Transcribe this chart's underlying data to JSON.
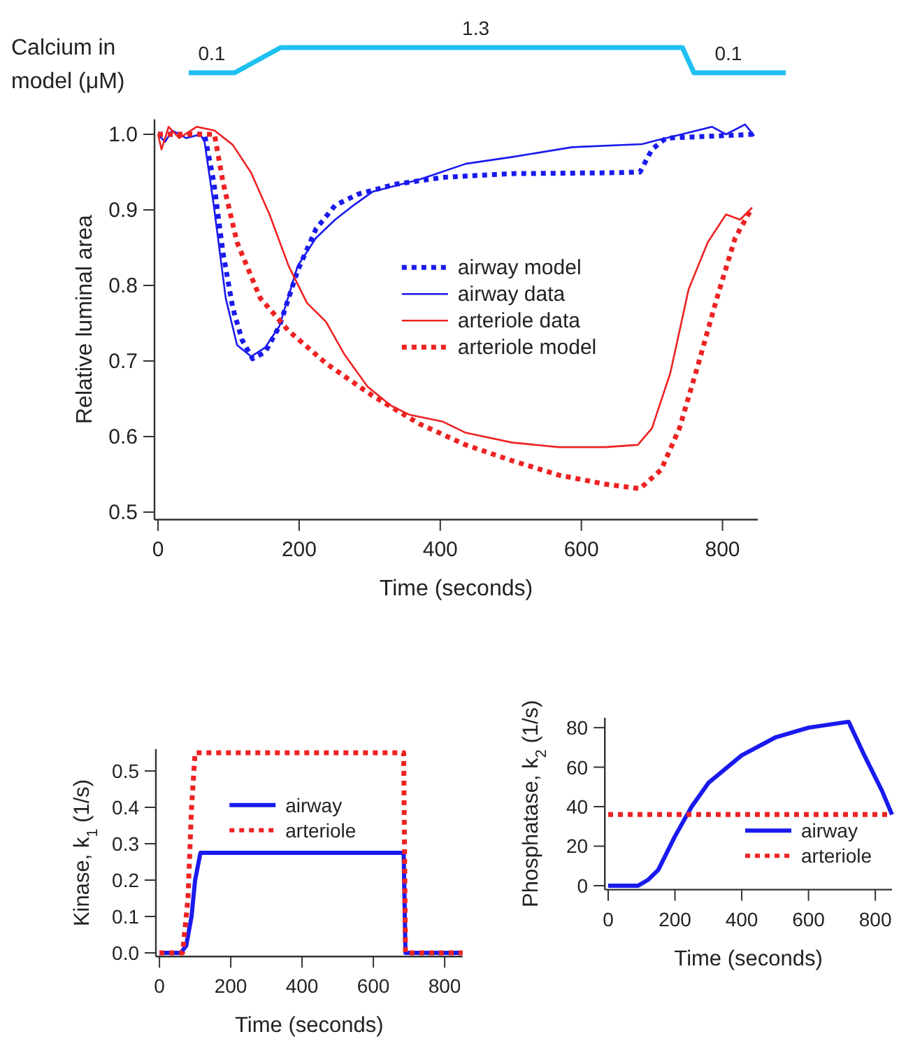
{
  "chart_data": [
    {
      "type": "line",
      "ylabel": "Calcium in\nmodel (μM)",
      "tick_labels": false,
      "categories": [
        null,
        null,
        null,
        null,
        null,
        null,
        null,
        null,
        null,
        null,
        null,
        null,
        null,
        null,
        null,
        null,
        null,
        null,
        null,
        null,
        null,
        null,
        null,
        null,
        null,
        null,
        null,
        null,
        null,
        null,
        null,
        null,
        null,
        null,
        null,
        null,
        null,
        null,
        null,
        null,
        null,
        null,
        null,
        null,
        null,
        null,
        null,
        null,
        null,
        null,
        null,
        null,
        null
      ],
      "series": [
        {
          "color": "#1ec0f0",
          "values": [
            0.1,
            0.1,
            0.1,
            0.1,
            0.1,
            0.4,
            0.7,
            1.0,
            1.3,
            1.3,
            1.3,
            1.3,
            1.3,
            1.3,
            1.3,
            1.3,
            1.3,
            1.3,
            1.3,
            1.3,
            1.3,
            1.3,
            1.3,
            1.3,
            1.3,
            1.3,
            1.3,
            1.3,
            1.3,
            1.3,
            1.3,
            1.3,
            1.3,
            1.3,
            1.3,
            1.3,
            1.3,
            1.3,
            1.3,
            1.3,
            1.3,
            1.3,
            1.3,
            1.3,
            0.1,
            0.1,
            0.1,
            0.1,
            0.1,
            0.1,
            0.1,
            0.1,
            0.1
          ],
          "value_labels": [
            null,
            null,
            "0.1",
            null,
            null,
            null,
            null,
            null,
            null,
            null,
            null,
            null,
            null,
            null,
            null,
            null,
            null,
            null,
            null,
            null,
            null,
            null,
            null,
            null,
            null,
            "1.3",
            null,
            null,
            null,
            null,
            null,
            null,
            null,
            null,
            null,
            null,
            null,
            null,
            null,
            null,
            null,
            null,
            null,
            null,
            null,
            null,
            null,
            "0.1",
            null,
            null,
            null,
            null,
            null
          ]
        }
      ]
    },
    {
      "type": "line",
      "xlabel": "Time (seconds)",
      "ylabel": "Relative luminal area",
      "xlim": [
        -5,
        850
      ],
      "ylim": [
        0.49,
        1.02
      ],
      "xticks": [
        0,
        200,
        400,
        600,
        800
      ],
      "yticks": [
        {
          "value": 0.5,
          "label": "0.5"
        },
        {
          "value": 0.6,
          "label": "0.6"
        },
        {
          "value": 0.7,
          "label": "0.7"
        },
        {
          "value": 0.8,
          "label": "0.8"
        },
        {
          "value": 0.9,
          "label": "0.9"
        },
        {
          "value": 1,
          "label": "1.0"
        }
      ],
      "legend": "right",
      "series": [
        {
          "name": "airway model",
          "color": "#1a1aee",
          "line_style": "dotted",
          "x": [
            0,
            66,
            79,
            92,
            106,
            119,
            134,
            152,
            172,
            198,
            224,
            251,
            284,
            337,
            403,
            502,
            634,
            683,
            700,
            720,
            845
          ],
          "values": [
            1.0,
            1.0,
            0.937,
            0.844,
            0.77,
            0.728,
            0.703,
            0.712,
            0.746,
            0.82,
            0.875,
            0.906,
            0.921,
            0.934,
            0.943,
            0.948,
            0.949,
            0.95,
            0.98,
            0.995,
            1.0
          ]
        },
        {
          "name": "airway data",
          "color": "#1a1aee",
          "line_style": "solid",
          "x": [
            0,
            10,
            20,
            40,
            60,
            66,
            79,
            96,
            112,
            132,
            152,
            172,
            198,
            224,
            251,
            277,
            304,
            370,
            436,
            502,
            587,
            686,
            706,
            733,
            785,
            805,
            832,
            845
          ],
          "values": [
            1.0,
            0.99,
            1.005,
            0.995,
            1.0,
            0.99,
            0.906,
            0.783,
            0.721,
            0.706,
            0.718,
            0.746,
            0.826,
            0.863,
            0.887,
            0.906,
            0.924,
            0.94,
            0.961,
            0.97,
            0.983,
            0.987,
            0.992,
            0.998,
            1.01,
            1.0,
            1.013,
            0.998
          ]
        },
        {
          "name": "arteriole data",
          "color": "#ee2222",
          "line_style": "solid",
          "x": [
            0,
            5,
            15,
            30,
            55,
            80,
            106,
            132,
            158,
            185,
            211,
            238,
            264,
            297,
            330,
            356,
            403,
            436,
            502,
            568,
            634,
            680,
            700,
            726,
            752,
            779,
            805,
            825,
            842
          ],
          "values": [
            1.0,
            0.98,
            1.01,
            0.995,
            1.01,
            1.005,
            0.986,
            0.949,
            0.894,
            0.826,
            0.777,
            0.752,
            0.709,
            0.666,
            0.641,
            0.629,
            0.62,
            0.605,
            0.592,
            0.586,
            0.586,
            0.589,
            0.611,
            0.684,
            0.795,
            0.857,
            0.894,
            0.887,
            0.903
          ]
        },
        {
          "name": "arteriole model",
          "color": "#ee2222",
          "line_style": "dotted",
          "x": [
            0,
            80,
            92,
            112,
            145,
            185,
            238,
            304,
            370,
            436,
            502,
            568,
            634,
            683,
            713,
            739,
            766,
            792,
            818,
            842
          ],
          "values": [
            1.0,
            1.0,
            0.937,
            0.857,
            0.783,
            0.74,
            0.697,
            0.654,
            0.617,
            0.589,
            0.568,
            0.549,
            0.537,
            0.531,
            0.556,
            0.611,
            0.697,
            0.783,
            0.863,
            0.903
          ]
        }
      ]
    },
    {
      "type": "line",
      "xlabel": "Time (seconds)",
      "ylabel": "Kinase, $_{}$k$_{1}$ (1/s)",
      "xlim": [
        -10,
        850
      ],
      "ylim": [
        -0.01,
        0.56
      ],
      "xticks": [
        0,
        200,
        400,
        600,
        800
      ],
      "yticks": [
        {
          "value": 0,
          "label": "0.0"
        },
        {
          "value": 0.1,
          "label": "0.1"
        },
        {
          "value": 0.2,
          "label": "0.2"
        },
        {
          "value": 0.3,
          "label": "0.3"
        },
        {
          "value": 0.4,
          "label": "0.4"
        },
        {
          "value": 0.5,
          "label": "0.5"
        }
      ],
      "legend": "top",
      "series": [
        {
          "name": "airway",
          "color": "#1a1aee",
          "line_style": "solid",
          "x": [
            0,
            60,
            75,
            90,
            100,
            115,
            685,
            690,
            850
          ],
          "values": [
            0,
            0,
            0.02,
            0.1,
            0.2,
            0.275,
            0.275,
            0,
            0
          ]
        },
        {
          "name": "arteriole",
          "color": "#ee2222",
          "line_style": "dotted",
          "x": [
            0,
            65,
            80,
            90,
            100,
            685,
            690,
            850
          ],
          "values": [
            0,
            0,
            0.15,
            0.4,
            0.55,
            0.55,
            0,
            0
          ]
        }
      ]
    },
    {
      "type": "line",
      "xlabel": "Time (seconds)",
      "ylabel": "Phosphatase, $_{}$k$_{2}$ (1/s)",
      "xlim": [
        -10,
        850
      ],
      "ylim": [
        -2,
        85
      ],
      "xticks": [
        0,
        200,
        400,
        600,
        800
      ],
      "yticks": [
        0,
        20,
        40,
        60,
        80
      ],
      "legend": "bottom right",
      "series": [
        {
          "name": "airway",
          "color": "#1a1aee",
          "line_style": "solid",
          "x": [
            0,
            90,
            120,
            150,
            200,
            250,
            300,
            400,
            500,
            600,
            720,
            770,
            820,
            850
          ],
          "values": [
            0,
            0,
            3,
            8,
            25,
            40,
            52,
            66,
            75,
            80,
            83,
            65,
            48,
            36
          ]
        },
        {
          "name": "arteriole",
          "color": "#ee2222",
          "line_style": "dotted",
          "x": [
            0,
            850
          ],
          "values": [
            36,
            36
          ]
        }
      ]
    }
  ]
}
